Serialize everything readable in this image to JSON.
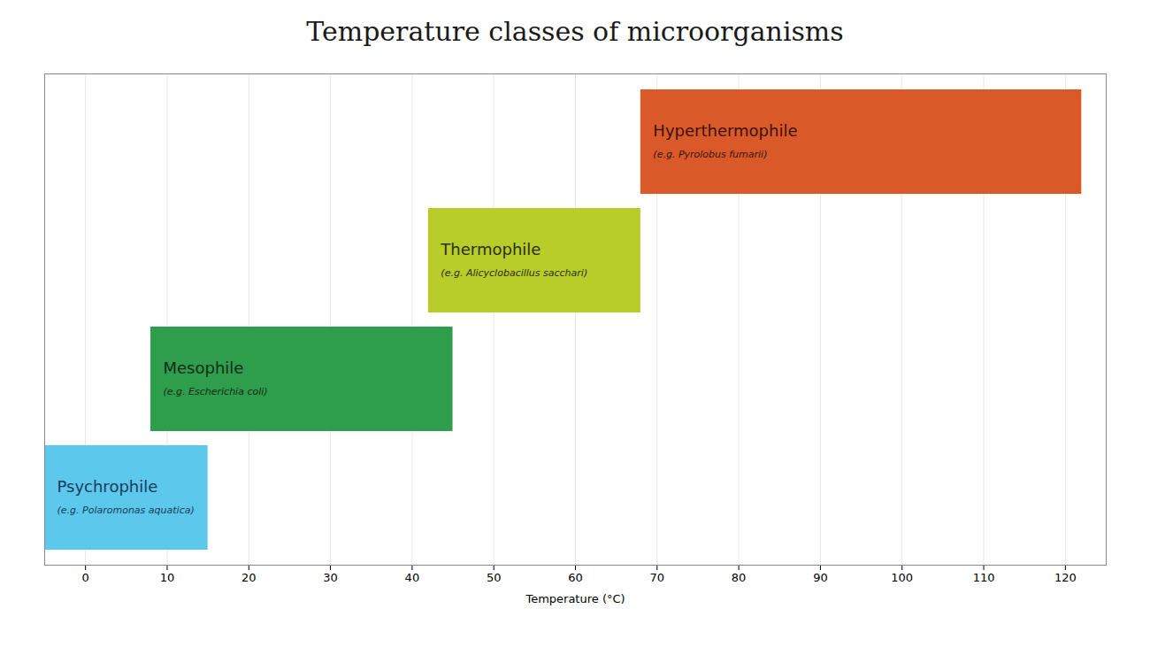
{
  "chart_data": {
    "type": "bar",
    "orientation": "horizontal",
    "title": "Temperature classes of microorganisms",
    "xlabel": "Temperature (°C)",
    "categories": [
      "Psychrophile",
      "Mesophile",
      "Thermophile",
      "Hyperthermophile"
    ],
    "sublabels": [
      "(e.g. Polaromonas aquatica)",
      "(e.g. Escherichia coli)",
      "(e.g. Alicyclobacillus sacchari)",
      "(e.g. Pyrolobus fumarii)"
    ],
    "x_start": [
      -5,
      8,
      42,
      68
    ],
    "x_end": [
      15,
      45,
      68,
      122
    ],
    "colors": [
      "#5BC8EC",
      "#2E9E4C",
      "#B8CC2A",
      "#D95A28"
    ],
    "label_colors": [
      "#1a3a5c",
      "#152a18",
      "#2a300a",
      "#3a1208"
    ],
    "xlim": [
      -5,
      125
    ],
    "xticks": [
      0,
      10,
      20,
      30,
      40,
      50,
      60,
      70,
      80,
      90,
      100,
      110,
      120
    ],
    "grid": true,
    "tick_labels": "x"
  }
}
